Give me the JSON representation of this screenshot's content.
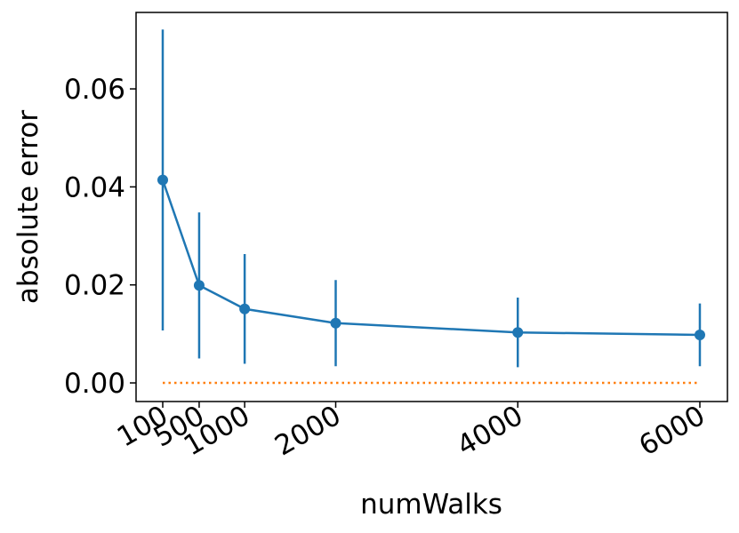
{
  "chart_data": {
    "type": "errorbar",
    "xlabel": "numWalks",
    "ylabel": "absolute error",
    "x": [
      100,
      500,
      1000,
      2000,
      4000,
      6000
    ],
    "series": [
      {
        "color": "#1f77b4",
        "style": "solid",
        "markers": true,
        "values": [
          0.0414,
          0.0199,
          0.0151,
          0.0122,
          0.0103,
          0.0098
        ],
        "errors": [
          0.0307,
          0.0149,
          0.0112,
          0.0088,
          0.0071,
          0.0064
        ]
      },
      {
        "color": "#ff7f0e",
        "style": "dotted",
        "markers": false,
        "values": [
          0,
          0,
          0,
          0,
          0,
          0
        ]
      }
    ],
    "xlim": [
      -193,
      6303
    ],
    "ylim": [
      -0.0038,
      0.0756
    ],
    "xticks": [
      100,
      500,
      1000,
      2000,
      4000,
      6000
    ],
    "yticks": [
      {
        "value": 0,
        "label": "0.00"
      },
      {
        "value": 0.02,
        "label": "0.02"
      },
      {
        "value": 0.04,
        "label": "0.04"
      },
      {
        "value": 0.06,
        "label": "0.06"
      }
    ],
    "grid": false
  }
}
